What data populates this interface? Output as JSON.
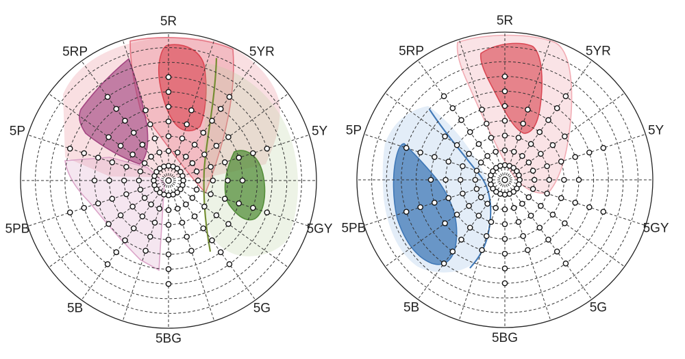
{
  "hue_labels": [
    "5R",
    "5YR",
    "5Y",
    "5GY",
    "5G",
    "5BG",
    "5B",
    "5PB",
    "5P",
    "5RP"
  ],
  "colors": {
    "red": "#d9424f",
    "purple": "#a0407e",
    "olive": "#6f8a2a",
    "green": "#4f8a35",
    "blue": "#3a74b4",
    "grid": "#333333"
  },
  "diagrams": [
    {
      "name": "left-polar-diagram",
      "regions": [
        {
          "name": "red-light",
          "color": "#e98c97",
          "opacity": 0.28,
          "outline": false
        },
        {
          "name": "red-mid",
          "color": "#e36e7c",
          "opacity": 0.3,
          "outline": true
        },
        {
          "name": "red-core",
          "color": "#d9424f",
          "opacity": 0.6,
          "outline": true
        },
        {
          "name": "purple-light",
          "color": "#d9a0c6",
          "opacity": 0.26,
          "outline": true
        },
        {
          "name": "purple-core",
          "color": "#a0407e",
          "opacity": 0.62,
          "outline": true
        },
        {
          "name": "green-light",
          "color": "#b9cf9a",
          "opacity": 0.25,
          "outline": false
        },
        {
          "name": "green-core",
          "color": "#4f8a35",
          "opacity": 0.72,
          "outline": true
        },
        {
          "name": "olive-boundary",
          "color": "#6f8a2a",
          "opacity": 0,
          "outline": true
        }
      ]
    },
    {
      "name": "right-polar-diagram",
      "regions": [
        {
          "name": "red-light",
          "color": "#f0a8b0",
          "opacity": 0.32,
          "outline": true
        },
        {
          "name": "red-core",
          "color": "#d9424f",
          "opacity": 0.6,
          "outline": true
        },
        {
          "name": "blue-light",
          "color": "#a9c7e8",
          "opacity": 0.32,
          "outline": false
        },
        {
          "name": "blue-core",
          "color": "#3a74b4",
          "opacity": 0.72,
          "outline": true
        },
        {
          "name": "blue-boundary",
          "color": "#3a74b4",
          "opacity": 0,
          "outline": true
        }
      ]
    }
  ]
}
